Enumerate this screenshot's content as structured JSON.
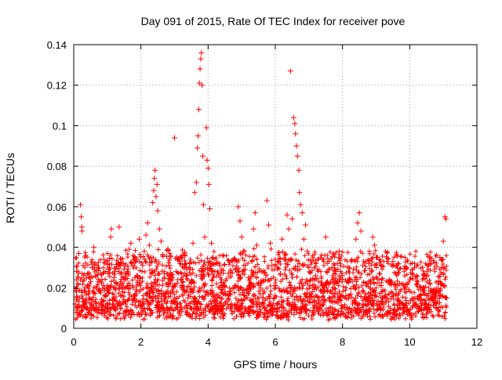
{
  "chart_data": {
    "type": "scatter",
    "title": "Day 091 of 2015, Rate Of TEC Index for receiver pove",
    "xlabel": "GPS time / hours",
    "ylabel": "ROTI / TECUs",
    "xlim": [
      0,
      12
    ],
    "ylim": [
      0,
      0.14
    ],
    "x_ticks": [
      "0",
      "2",
      "4",
      "6",
      "8",
      "10",
      "12"
    ],
    "y_ticks": [
      "0",
      "0.02",
      "0.04",
      "0.06",
      "0.08",
      "0.1",
      "0.12",
      "0.14"
    ],
    "x_tick_values": [
      0,
      2,
      4,
      6,
      8,
      10,
      12
    ],
    "y_tick_values": [
      0,
      0.02,
      0.04,
      0.06,
      0.08,
      0.1,
      0.12,
      0.14
    ],
    "grid": true,
    "marker": "+",
    "series": [
      {
        "name": "ROTI",
        "color": "#ff0000",
        "points": [
          [
            0.05,
            0.012
          ],
          [
            0.08,
            0.018
          ],
          [
            0.1,
            0.009
          ],
          [
            0.12,
            0.022
          ],
          [
            0.15,
            0.037
          ],
          [
            0.17,
            0.015
          ],
          [
            0.2,
            0.061
          ],
          [
            0.22,
            0.055
          ],
          [
            0.24,
            0.05
          ],
          [
            0.25,
            0.048
          ],
          [
            0.28,
            0.031
          ],
          [
            0.3,
            0.026
          ],
          [
            0.33,
            0.02
          ],
          [
            0.36,
            0.014
          ],
          [
            0.4,
            0.01
          ],
          [
            0.45,
            0.017
          ],
          [
            0.5,
            0.023
          ],
          [
            0.55,
            0.03
          ],
          [
            0.6,
            0.04
          ],
          [
            0.65,
            0.013
          ],
          [
            0.7,
            0.008
          ],
          [
            0.75,
            0.019
          ],
          [
            0.8,
            0.027
          ],
          [
            0.85,
            0.011
          ],
          [
            0.9,
            0.034
          ],
          [
            0.95,
            0.016
          ],
          [
            1.0,
            0.021
          ],
          [
            1.05,
            0.03
          ],
          [
            1.1,
            0.045
          ],
          [
            1.12,
            0.049
          ],
          [
            1.15,
            0.014
          ],
          [
            1.2,
            0.025
          ],
          [
            1.25,
            0.019
          ],
          [
            1.3,
            0.011
          ],
          [
            1.35,
            0.05
          ],
          [
            1.4,
            0.032
          ],
          [
            1.45,
            0.018
          ],
          [
            1.5,
            0.024
          ],
          [
            1.55,
            0.012
          ],
          [
            1.6,
            0.028
          ],
          [
            1.65,
            0.039
          ],
          [
            1.7,
            0.042
          ],
          [
            1.75,
            0.021
          ],
          [
            1.8,
            0.016
          ],
          [
            1.85,
            0.033
          ],
          [
            1.9,
            0.026
          ],
          [
            1.95,
            0.044
          ],
          [
            2.0,
            0.019
          ],
          [
            2.05,
            0.031
          ],
          [
            2.1,
            0.038
          ],
          [
            2.15,
            0.046
          ],
          [
            2.2,
            0.052
          ],
          [
            2.25,
            0.041
          ],
          [
            2.3,
            0.035
          ],
          [
            2.35,
            0.062
          ],
          [
            2.38,
            0.068
          ],
          [
            2.4,
            0.074
          ],
          [
            2.42,
            0.078
          ],
          [
            2.45,
            0.065
          ],
          [
            2.48,
            0.071
          ],
          [
            2.5,
            0.058
          ],
          [
            2.55,
            0.049
          ],
          [
            2.6,
            0.043
          ],
          [
            2.65,
            0.036
          ],
          [
            2.7,
            0.027
          ],
          [
            2.75,
            0.022
          ],
          [
            2.8,
            0.039
          ],
          [
            2.85,
            0.031
          ],
          [
            2.9,
            0.025
          ],
          [
            2.95,
            0.018
          ],
          [
            3.0,
            0.094
          ],
          [
            3.05,
            0.028
          ],
          [
            3.1,
            0.024
          ],
          [
            3.15,
            0.033
          ],
          [
            3.2,
            0.021
          ],
          [
            3.25,
            0.019
          ],
          [
            3.3,
            0.037
          ],
          [
            3.35,
            0.026
          ],
          [
            3.4,
            0.015
          ],
          [
            3.45,
            0.032
          ],
          [
            3.5,
            0.022
          ],
          [
            3.55,
            0.042
          ],
          [
            3.6,
            0.067
          ],
          [
            3.65,
            0.072
          ],
          [
            3.68,
            0.089
          ],
          [
            3.7,
            0.095
          ],
          [
            3.72,
            0.108
          ],
          [
            3.74,
            0.121
          ],
          [
            3.76,
            0.128
          ],
          [
            3.78,
            0.133
          ],
          [
            3.8,
            0.136
          ],
          [
            3.82,
            0.12
          ],
          [
            3.84,
            0.085
          ],
          [
            3.86,
            0.061
          ],
          [
            3.9,
            0.045
          ],
          [
            3.95,
            0.099
          ],
          [
            3.97,
            0.083
          ],
          [
            4.0,
            0.079
          ],
          [
            4.02,
            0.071
          ],
          [
            4.05,
            0.059
          ],
          [
            4.1,
            0.042
          ],
          [
            4.15,
            0.035
          ],
          [
            4.2,
            0.028
          ],
          [
            4.25,
            0.022
          ],
          [
            4.3,
            0.016
          ],
          [
            4.35,
            0.031
          ],
          [
            4.4,
            0.024
          ],
          [
            4.5,
            0.018
          ],
          [
            4.6,
            0.027
          ],
          [
            4.7,
            0.012
          ],
          [
            4.8,
            0.021
          ],
          [
            4.9,
            0.06
          ],
          [
            4.95,
            0.053
          ],
          [
            5.0,
            0.045
          ],
          [
            5.05,
            0.038
          ],
          [
            5.1,
            0.029
          ],
          [
            5.15,
            0.019
          ],
          [
            5.2,
            0.025
          ],
          [
            5.25,
            0.014
          ],
          [
            5.3,
            0.033
          ],
          [
            5.35,
            0.049
          ],
          [
            5.4,
            0.057
          ],
          [
            5.45,
            0.041
          ],
          [
            5.5,
            0.022
          ],
          [
            5.55,
            0.017
          ],
          [
            5.6,
            0.028
          ],
          [
            5.65,
            0.012
          ],
          [
            5.7,
            0.024
          ],
          [
            5.75,
            0.063
          ],
          [
            5.8,
            0.051
          ],
          [
            5.85,
            0.042
          ],
          [
            5.9,
            0.031
          ],
          [
            5.95,
            0.015
          ],
          [
            6.0,
            0.021
          ],
          [
            6.05,
            0.008
          ],
          [
            6.1,
            0.033
          ],
          [
            6.15,
            0.027
          ],
          [
            6.2,
            0.044
          ],
          [
            6.25,
            0.019
          ],
          [
            6.3,
            0.036
          ],
          [
            6.35,
            0.056
          ],
          [
            6.4,
            0.049
          ],
          [
            6.45,
            0.127
          ],
          [
            6.5,
            0.054
          ],
          [
            6.55,
            0.104
          ],
          [
            6.58,
            0.101
          ],
          [
            6.6,
            0.096
          ],
          [
            6.63,
            0.09
          ],
          [
            6.66,
            0.085
          ],
          [
            6.7,
            0.078
          ],
          [
            6.72,
            0.067
          ],
          [
            6.75,
            0.061
          ],
          [
            6.8,
            0.057
          ],
          [
            6.85,
            0.044
          ],
          [
            6.9,
            0.051
          ],
          [
            6.95,
            0.038
          ],
          [
            7.0,
            0.03
          ],
          [
            7.05,
            0.024
          ],
          [
            7.1,
            0.018
          ],
          [
            7.2,
            0.026
          ],
          [
            7.3,
            0.013
          ],
          [
            7.4,
            0.021
          ],
          [
            7.5,
            0.045
          ],
          [
            7.6,
            0.033
          ],
          [
            7.7,
            0.019
          ],
          [
            7.8,
            0.028
          ],
          [
            7.9,
            0.038
          ],
          [
            8.0,
            0.026
          ],
          [
            8.1,
            0.016
          ],
          [
            8.2,
            0.024
          ],
          [
            8.3,
            0.012
          ],
          [
            8.4,
            0.044
          ],
          [
            8.45,
            0.052
          ],
          [
            8.5,
            0.057
          ],
          [
            8.55,
            0.048
          ],
          [
            8.6,
            0.031
          ],
          [
            8.7,
            0.022
          ],
          [
            8.8,
            0.038
          ],
          [
            8.9,
            0.045
          ],
          [
            8.95,
            0.041
          ],
          [
            9.0,
            0.035
          ],
          [
            9.1,
            0.027
          ],
          [
            9.2,
            0.019
          ],
          [
            9.3,
            0.013
          ],
          [
            9.4,
            0.024
          ],
          [
            9.5,
            0.033
          ],
          [
            9.6,
            0.017
          ],
          [
            9.7,
            0.022
          ],
          [
            9.8,
            0.012
          ],
          [
            9.9,
            0.018
          ],
          [
            10.0,
            0.024
          ],
          [
            10.1,
            0.011
          ],
          [
            10.2,
            0.026
          ],
          [
            10.3,
            0.016
          ],
          [
            10.4,
            0.02
          ],
          [
            10.5,
            0.009
          ],
          [
            10.6,
            0.014
          ],
          [
            10.7,
            0.018
          ],
          [
            10.8,
            0.012
          ],
          [
            10.9,
            0.035
          ],
          [
            10.95,
            0.03
          ],
          [
            11.0,
            0.043
          ],
          [
            11.05,
            0.055
          ],
          [
            11.08,
            0.054
          ],
          [
            11.1,
            0.015
          ]
        ]
      }
    ]
  }
}
